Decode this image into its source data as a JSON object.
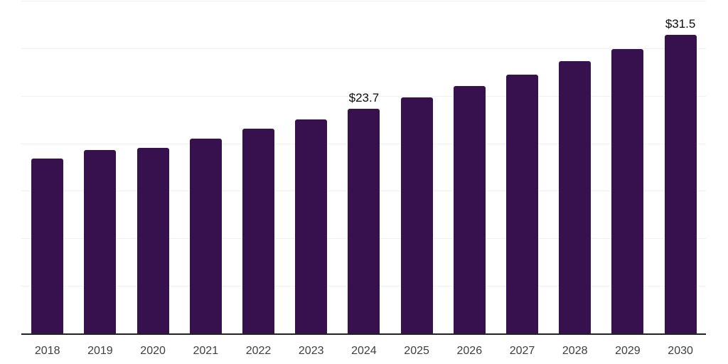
{
  "chart_data": {
    "type": "bar",
    "title": "",
    "xlabel": "",
    "ylabel": "",
    "categories": [
      "2018",
      "2019",
      "2020",
      "2021",
      "2022",
      "2023",
      "2024",
      "2025",
      "2026",
      "2027",
      "2028",
      "2029",
      "2030"
    ],
    "values": [
      18.5,
      19.4,
      19.6,
      20.6,
      21.6,
      22.6,
      23.7,
      24.9,
      26.1,
      27.3,
      28.7,
      30.0,
      31.5
    ],
    "annotations": [
      {
        "category": "2024",
        "text": "$23.7"
      },
      {
        "category": "2030",
        "text": "$31.5"
      }
    ],
    "ylim": [
      0,
      35
    ],
    "grid_step": 5,
    "grid": "on",
    "y_tick_labels_visible": false,
    "legend_position": "none",
    "colors": {
      "bar": "#36114d",
      "grid_line": "#f1f1f1",
      "axis_line": "#222222",
      "x_tick_label": "#3f3f3f",
      "annotation_text": "#0c0c0c",
      "background": "#ffffff"
    }
  }
}
